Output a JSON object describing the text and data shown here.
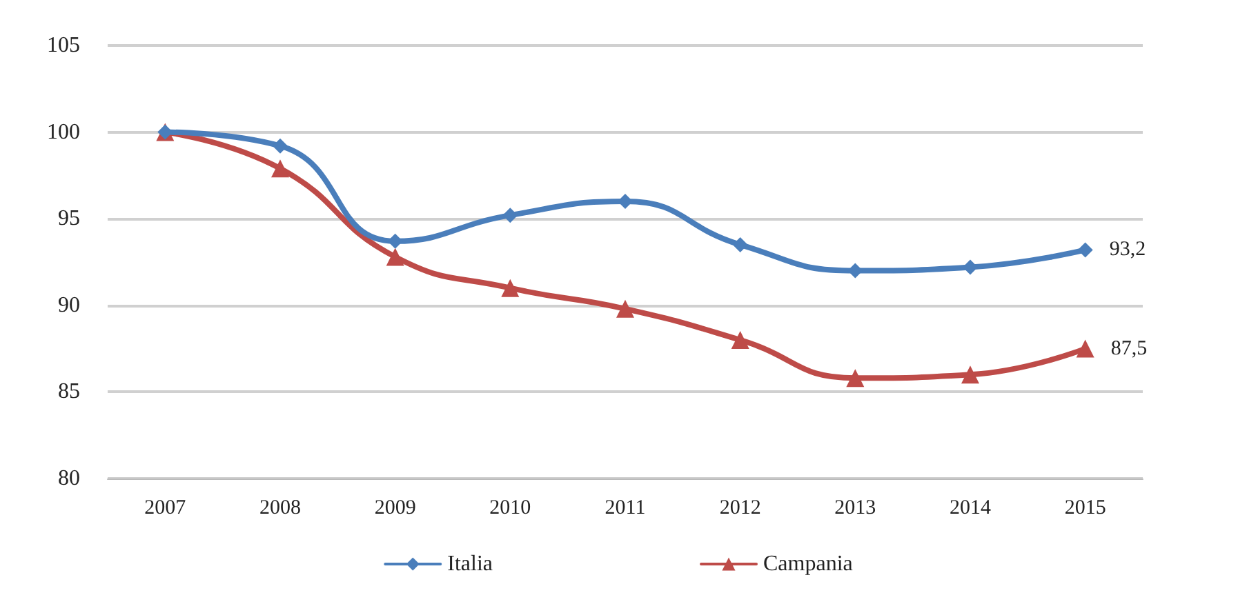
{
  "chart_data": {
    "type": "line",
    "categories": [
      "2007",
      "2008",
      "2009",
      "2010",
      "2011",
      "2012",
      "2013",
      "2014",
      "2015"
    ],
    "ylim": [
      80,
      105
    ],
    "yticks": [
      80,
      85,
      90,
      95,
      100,
      105
    ],
    "grid": "y",
    "legend": "bottom",
    "series": [
      {
        "name": "Italia",
        "color": "#4a7ebb",
        "marker": "diamond",
        "values": [
          100,
          99.2,
          93.7,
          95.2,
          96.0,
          93.5,
          92.0,
          92.2,
          93.2
        ],
        "value_labels": [
          null,
          null,
          null,
          null,
          null,
          null,
          null,
          null,
          "93,2"
        ]
      },
      {
        "name": "Campania",
        "color": "#be4b48",
        "marker": "triangle",
        "values": [
          100,
          97.9,
          92.8,
          91.0,
          89.8,
          88.0,
          85.8,
          86.0,
          87.5
        ],
        "value_labels": [
          null,
          null,
          null,
          null,
          null,
          null,
          null,
          null,
          "87,5"
        ]
      }
    ]
  }
}
